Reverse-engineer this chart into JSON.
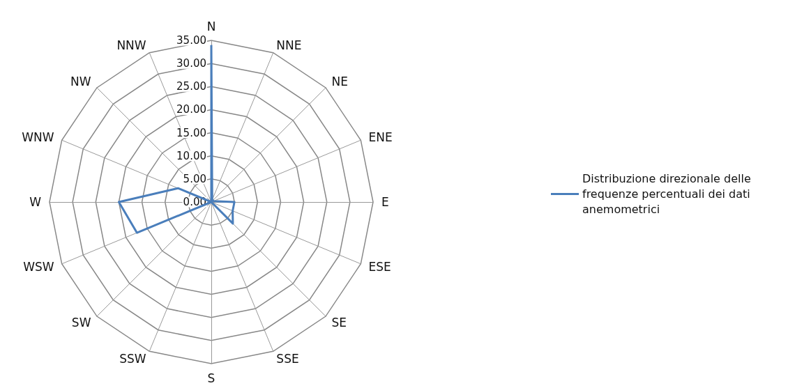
{
  "chart_data": {
    "type": "radar",
    "categories": [
      "N",
      "NNE",
      "NE",
      "ENE",
      "E",
      "ESE",
      "SE",
      "SSE",
      "S",
      "SSW",
      "SW",
      "WSW",
      "W",
      "WNW",
      "NW",
      "NNW"
    ],
    "series": [
      {
        "name": "Distribuzione direzionale delle frequenze percentuali dei dati anemometrici",
        "color": "#4a7ebb",
        "values": [
          34,
          0.5,
          0.5,
          0.5,
          5,
          5,
          6.6,
          0,
          0,
          0,
          0,
          17.4,
          20,
          7.8,
          0,
          0
        ]
      }
    ],
    "ylim": [
      0,
      35
    ],
    "yticks": [
      {
        "value": 0,
        "label": "0.00"
      },
      {
        "value": 5,
        "label": "5.00"
      },
      {
        "value": 10,
        "label": "10.00"
      },
      {
        "value": 15,
        "label": "15.00"
      },
      {
        "value": 20,
        "label": "20.00"
      },
      {
        "value": 25,
        "label": "25.00"
      },
      {
        "value": 30,
        "label": "30.00"
      },
      {
        "value": 35,
        "label": "35.00"
      }
    ],
    "legend": "right",
    "marker": "none",
    "grid": true
  }
}
